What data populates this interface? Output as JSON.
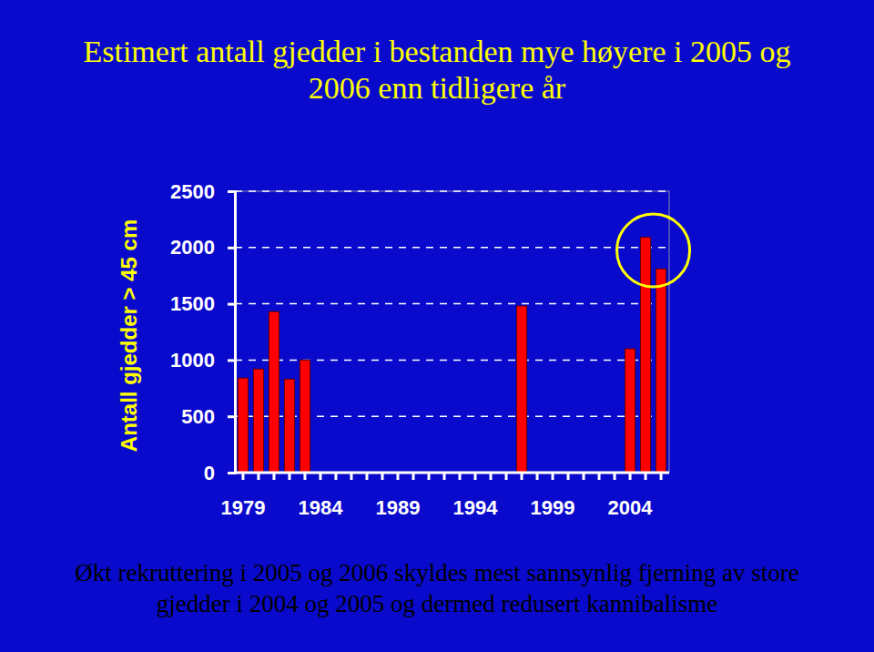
{
  "chart_data": {
    "type": "bar",
    "title": "Estimert antall gjedder i bestanden mye høyere i 2005 og 2006 enn tidligere år",
    "y_label": "Antall gjedder > 45 cm",
    "annotations": [
      "Økt rekruttering i 2005 og 2006 skyldes mest sannsynlig fjerning av store gjedder i 2004 og 2005 og dermed redusert kannibalisme"
    ],
    "categories": [
      "1979",
      null,
      null,
      null,
      null,
      "1984",
      null,
      null,
      null,
      null,
      "1989",
      null,
      null,
      null,
      null,
      "1994",
      null,
      null,
      null,
      null,
      "1999",
      null,
      null,
      null,
      null,
      "2004",
      null,
      null
    ],
    "values": [
      840,
      920,
      1430,
      830,
      1000,
      null,
      null,
      null,
      null,
      null,
      null,
      null,
      null,
      null,
      null,
      null,
      null,
      null,
      1480,
      null,
      null,
      null,
      null,
      null,
      null,
      1100,
      2090,
      1810
    ],
    "color": "#ff0000",
    "ylim": [
      0,
      2500
    ],
    "yticks": [
      0,
      500,
      1000,
      1500,
      2000,
      2500
    ],
    "grid": true
  }
}
